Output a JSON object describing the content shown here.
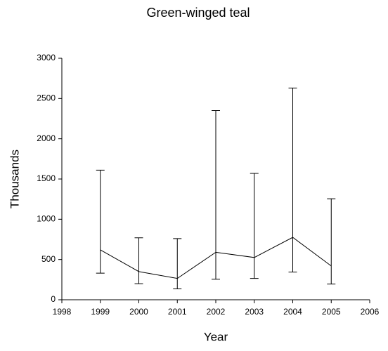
{
  "chart_data": {
    "type": "line",
    "title": "Green-winged teal",
    "x_label": "Year",
    "y_label": "Thousands",
    "x": [
      1999,
      2000,
      2001,
      2002,
      2003,
      2004,
      2005
    ],
    "series": [
      {
        "color": "#000000",
        "values": [
          620,
          350,
          265,
          590,
          525,
          775,
          420
        ],
        "lower": [
          330,
          200,
          135,
          255,
          265,
          345,
          195
        ],
        "upper": [
          1610,
          770,
          760,
          2350,
          1570,
          2630,
          1255
        ]
      }
    ],
    "xlim": [
      1998,
      2006
    ],
    "xticks": [
      1998,
      1999,
      2000,
      2001,
      2002,
      2003,
      2004,
      2005,
      2006
    ],
    "ylim": [
      0,
      3000
    ],
    "yticks": [
      0,
      500,
      1000,
      1500,
      2000,
      2500,
      3000
    ],
    "grid": false
  }
}
